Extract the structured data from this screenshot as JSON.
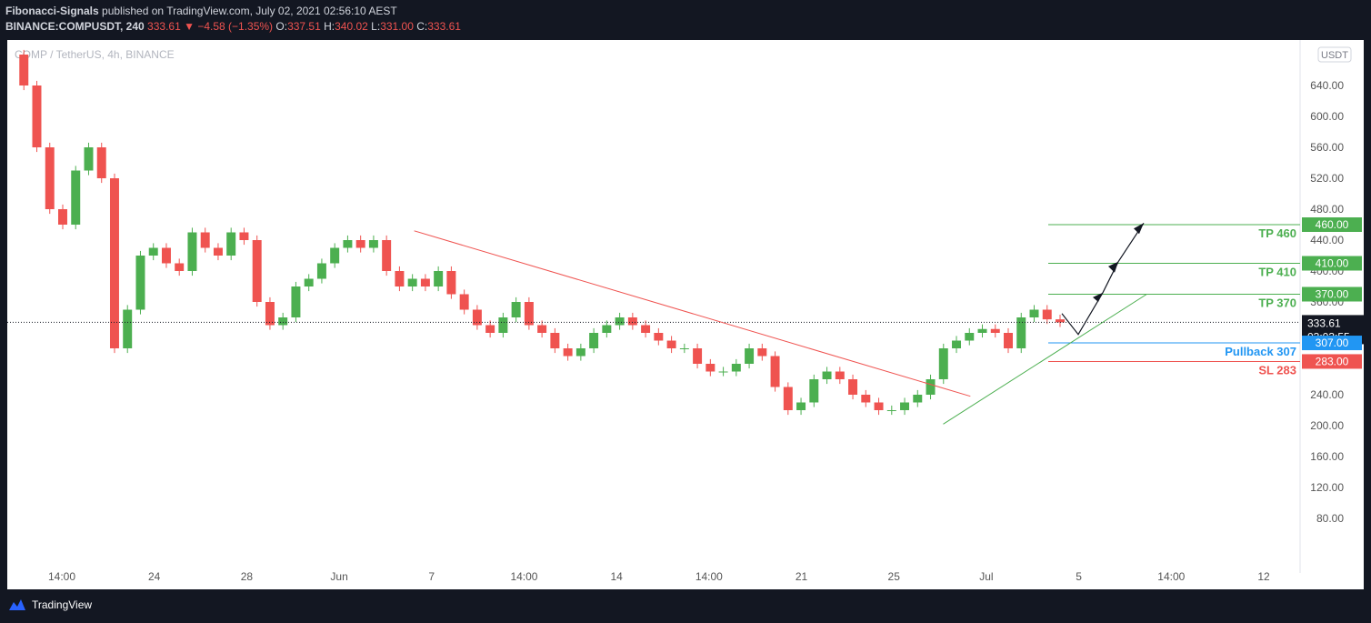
{
  "header": {
    "author": "Fibonacci-Signals",
    "published_text": "published on TradingView.com, July 02, 2021 02:56:10 AEST",
    "symbol": "BINANCE:COMPUSDT, 240",
    "last": "333.61",
    "arrow": "▼",
    "change": "−4.58 (−1.35%)",
    "o_label": "O:",
    "o_value": "337.51",
    "h_label": "H:",
    "h_value": "340.02",
    "l_label": "L:",
    "l_value": "331.00",
    "c_label": "C:",
    "c_value": "333.61"
  },
  "chart": {
    "legend": "COMP / TetherUS, 4h, BINANCE",
    "currency": "USDT",
    "colors": {
      "up": "#4caf50",
      "down": "#ef5350",
      "tp": "#4caf50",
      "pullback": "#2196f3",
      "sl": "#ef5350",
      "current": "#131722"
    }
  },
  "chart_data": {
    "type": "candlestick",
    "title": "COMP / TetherUS, 4h, BINANCE",
    "ylabel": "USDT",
    "ylim": [
      40,
      680
    ],
    "y_ticks": [
      "640.00",
      "600.00",
      "560.00",
      "520.00",
      "480.00",
      "440.00",
      "400.00",
      "360.00",
      "240.00",
      "200.00",
      "160.00",
      "120.00",
      "80.00"
    ],
    "x_ticks": [
      "14:00",
      "24",
      "28",
      "Jun",
      "7",
      "14:00",
      "14",
      "14:00",
      "21",
      "25",
      "Jul",
      "5",
      "14:00",
      "12"
    ],
    "close_series": [
      680,
      640,
      560,
      480,
      460,
      530,
      560,
      520,
      300,
      350,
      420,
      430,
      410,
      400,
      450,
      430,
      420,
      450,
      440,
      360,
      330,
      340,
      380,
      390,
      410,
      430,
      440,
      430,
      440,
      400,
      380,
      390,
      380,
      400,
      370,
      350,
      330,
      320,
      340,
      360,
      330,
      320,
      300,
      290,
      300,
      320,
      330,
      340,
      330,
      320,
      310,
      300,
      300,
      280,
      270,
      270,
      280,
      300,
      290,
      250,
      220,
      230,
      260,
      270,
      260,
      240,
      230,
      220,
      220,
      230,
      240,
      260,
      300,
      310,
      320,
      325,
      320,
      300,
      340,
      350,
      337.51,
      333.61
    ],
    "current_price": 333.61,
    "countdown": "03:03:55",
    "levels": [
      {
        "label": "TP 460",
        "value": 460,
        "tag": "460.00"
      },
      {
        "label": "TP 410",
        "value": 410,
        "tag": "410.00"
      },
      {
        "label": "TP 370",
        "value": 370,
        "tag": "370.00"
      },
      {
        "label": "Pullback 307",
        "value": 307,
        "tag": "307.00"
      },
      {
        "label": "SL 283",
        "value": 283,
        "tag": "283.00"
      }
    ],
    "trendlines": [
      {
        "name": "down-trendline",
        "from": [
          0.3,
          452
        ],
        "to": [
          0.71,
          238
        ]
      },
      {
        "name": "up-trendline",
        "from": [
          0.69,
          202
        ],
        "to": [
          0.84,
          370
        ]
      }
    ]
  },
  "footer": {
    "brand": "TradingView"
  }
}
